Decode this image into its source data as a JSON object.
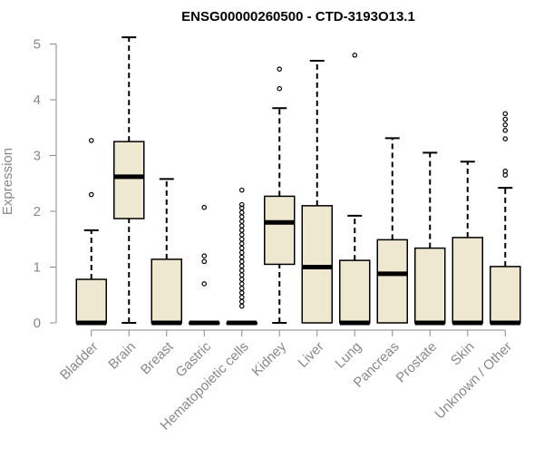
{
  "chart_data": {
    "type": "box",
    "title": "ENSG00000260500 - CTD-3193O13.1",
    "xlabel": "",
    "ylabel": "Expression",
    "ylim": [
      0,
      5.15
    ],
    "yticks": [
      0,
      1,
      2,
      3,
      4,
      5
    ],
    "grid": false,
    "legend": "none",
    "box_fill": "#efe8d0",
    "stroke": "#000000",
    "categories": [
      "Bladder",
      "Brain",
      "Breast",
      "Gastric",
      "Hematopoietic cells",
      "Kidney",
      "Liver",
      "Lung",
      "Pancreas",
      "Prostate",
      "Skin",
      "Unknown / Other"
    ],
    "boxes": [
      {
        "min": 0,
        "q1": 0,
        "median": 0,
        "q3": 0.78,
        "max": 1.66,
        "outliers": [
          2.3,
          3.27
        ]
      },
      {
        "min": 0,
        "q1": 1.87,
        "median": 2.62,
        "q3": 3.25,
        "max": 5.12,
        "outliers": []
      },
      {
        "min": 0,
        "q1": 0,
        "median": 0,
        "q3": 1.14,
        "max": 2.58,
        "outliers": []
      },
      {
        "min": 0,
        "q1": 0,
        "median": 0,
        "q3": 0,
        "max": 0,
        "outliers": [
          0.7,
          1.1,
          1.2,
          2.07
        ]
      },
      {
        "min": 0,
        "q1": 0,
        "median": 0,
        "q3": 0,
        "max": 0,
        "outliers": [
          0.3,
          0.38,
          0.46,
          0.54,
          0.62,
          0.7,
          0.78,
          0.86,
          0.94,
          1.02,
          1.1,
          1.18,
          1.26,
          1.34,
          1.42,
          1.5,
          1.58,
          1.66,
          1.74,
          1.82,
          1.9,
          1.98,
          2.06,
          2.12,
          2.38
        ]
      },
      {
        "min": 0,
        "q1": 1.05,
        "median": 1.8,
        "q3": 2.27,
        "max": 3.85,
        "outliers": [
          4.2,
          4.55
        ]
      },
      {
        "min": 0,
        "q1": 0,
        "median": 1.0,
        "q3": 2.1,
        "max": 4.7,
        "outliers": []
      },
      {
        "min": 0,
        "q1": 0,
        "median": 0,
        "q3": 1.12,
        "max": 1.92,
        "outliers": [
          4.8
        ]
      },
      {
        "min": 0,
        "q1": 0,
        "median": 0.88,
        "q3": 1.49,
        "max": 3.31,
        "outliers": []
      },
      {
        "min": 0,
        "q1": 0,
        "median": 0,
        "q3": 1.34,
        "max": 3.05,
        "outliers": []
      },
      {
        "min": 0,
        "q1": 0,
        "median": 0,
        "q3": 1.53,
        "max": 2.89,
        "outliers": []
      },
      {
        "min": 0,
        "q1": 0,
        "median": 0,
        "q3": 1.01,
        "max": 2.42,
        "outliers": [
          2.65,
          2.72,
          3.3,
          3.45,
          3.55,
          3.65,
          3.75
        ]
      }
    ]
  }
}
